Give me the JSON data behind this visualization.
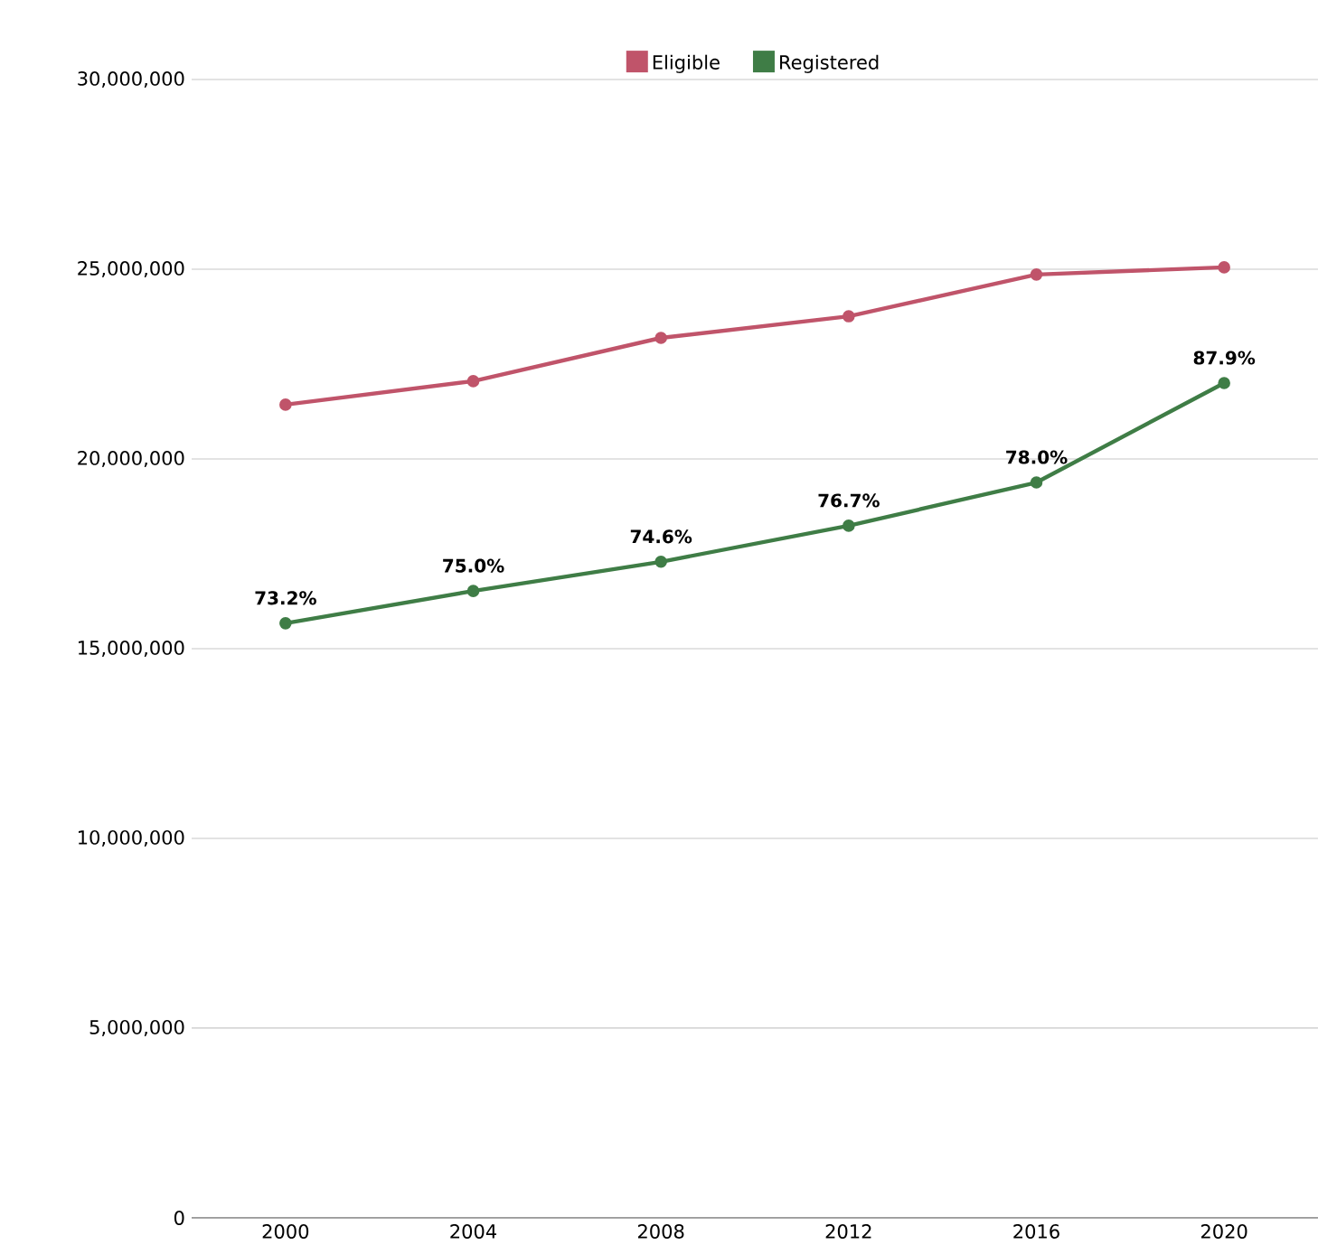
{
  "chart_data": {
    "type": "line",
    "categories": [
      "2000",
      "2004",
      "2008",
      "2012",
      "2016",
      "2020"
    ],
    "series": [
      {
        "name": "Eligible",
        "color": "#c0546a",
        "values": [
          21430000,
          22050000,
          23190000,
          23760000,
          24860000,
          25050000
        ]
      },
      {
        "name": "Registered",
        "color": "#3f7d46",
        "values": [
          15670000,
          16520000,
          17290000,
          18240000,
          19380000,
          22000000
        ]
      }
    ],
    "annotations": [
      {
        "text": "73.2%",
        "x": "2000",
        "y": 15670000
      },
      {
        "text": "75.0%",
        "x": "2004",
        "y": 16520000
      },
      {
        "text": "74.6%",
        "x": "2008",
        "y": 17290000
      },
      {
        "text": "76.7%",
        "x": "2012",
        "y": 18240000
      },
      {
        "text": "78.0%",
        "x": "2016",
        "y": 19380000
      },
      {
        "text": "87.9%",
        "x": "2020",
        "y": 22000000
      }
    ],
    "ylim": [
      0,
      30000000
    ],
    "yticks": [
      {
        "value": 0,
        "label": "0"
      },
      {
        "value": 5000000,
        "label": "5,000,000"
      },
      {
        "value": 10000000,
        "label": "10,000,000"
      },
      {
        "value": 15000000,
        "label": "15,000,000"
      },
      {
        "value": 20000000,
        "label": "20,000,000"
      },
      {
        "value": 25000000,
        "label": "25,000,000"
      },
      {
        "value": 30000000,
        "label": "30,000,000"
      }
    ],
    "grid": "y",
    "legend": "top",
    "marker": "circle",
    "line_style": "solid"
  }
}
